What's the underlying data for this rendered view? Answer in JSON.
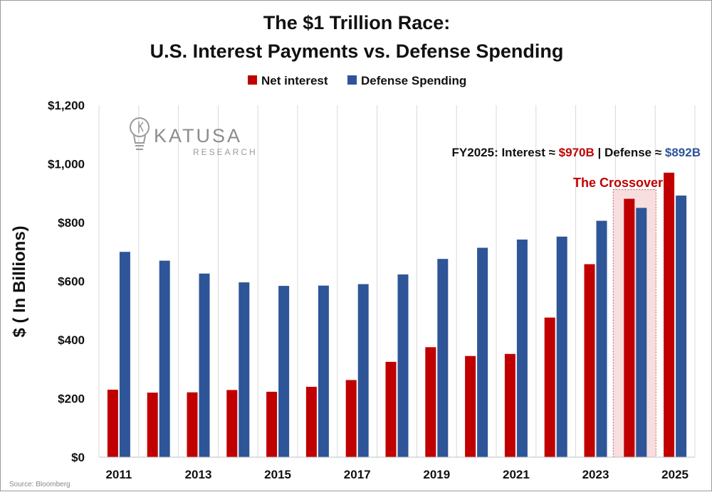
{
  "chart_data": {
    "type": "bar",
    "title": [
      "The $1 Trillion Race:",
      "U.S. Interest Payments vs. Defense Spending"
    ],
    "xlabel": "",
    "ylabel": "$ ( In Billions)",
    "ylim": [
      0,
      1200
    ],
    "yticks": [
      0,
      200,
      400,
      600,
      800,
      1000,
      1200
    ],
    "ytick_labels": [
      "$0",
      "$200",
      "$400",
      "$600",
      "$800",
      "$1,000",
      "$1,200"
    ],
    "categories": [
      "2011",
      "2012",
      "2013",
      "2014",
      "2015",
      "2016",
      "2017",
      "2018",
      "2019",
      "2020",
      "2021",
      "2022",
      "2023",
      "2024",
      "2025"
    ],
    "xtick_labels": [
      "2011",
      "2013",
      "2015",
      "2017",
      "2019",
      "2021",
      "2023",
      "2025"
    ],
    "grid": "vertical",
    "legend_position": "top",
    "series": [
      {
        "name": "Net interest",
        "color": "#c00000",
        "values": [
          230,
          220,
          221,
          229,
          223,
          240,
          263,
          325,
          375,
          345,
          352,
          476,
          658,
          881,
          970
        ]
      },
      {
        "name": "Defense Spending",
        "color": "#2e5597",
        "values": [
          700,
          670,
          626,
          596,
          584,
          585,
          590,
          623,
          676,
          714,
          742,
          752,
          806,
          850,
          892
        ]
      }
    ],
    "annotations": {
      "fy_note_prefix": "FY2025: Interest ≈ ",
      "fy_interest": "$970B",
      "fy_separator": " | Defense ≈ ",
      "fy_defense": "$892B",
      "crossover_label": "The Crossover",
      "crossover_category": "2024"
    }
  },
  "logo": {
    "name": "KATUSA",
    "subtitle": "RESEARCH"
  },
  "source": "Source: Bloomberg",
  "colors": {
    "interest": "#c00000",
    "defense": "#2e5597",
    "highlight_fill": "#f8dede",
    "highlight_stroke": "#c06060"
  }
}
